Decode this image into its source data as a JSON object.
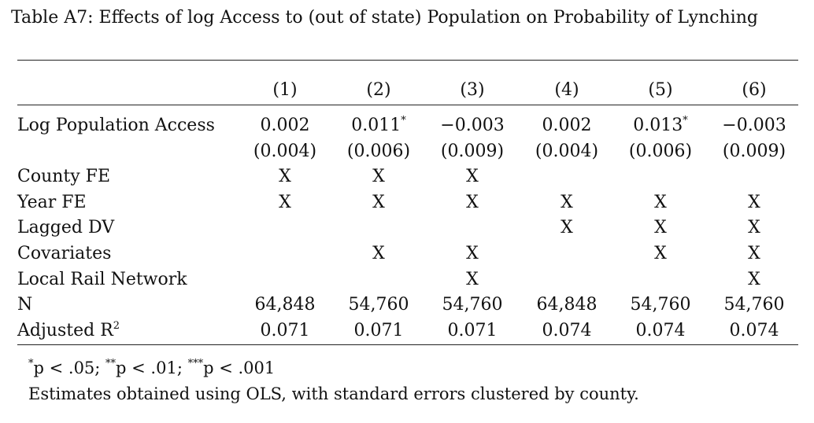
{
  "caption": "Table A7: Effects of log Access to (out of state) Population on Probability of Lynching",
  "table": {
    "columns": [
      "(1)",
      "(2)",
      "(3)",
      "(4)",
      "(5)",
      "(6)"
    ],
    "rows": [
      {
        "label": "Log Population Access",
        "cells": [
          {
            "v": "0.002",
            "star": ""
          },
          {
            "v": "0.011",
            "star": "*"
          },
          {
            "v": "−0.003",
            "star": ""
          },
          {
            "v": "0.002",
            "star": ""
          },
          {
            "v": "0.013",
            "star": "*"
          },
          {
            "v": "−0.003",
            "star": ""
          }
        ]
      },
      {
        "label": "",
        "cells": [
          {
            "v": "(0.004)",
            "star": ""
          },
          {
            "v": "(0.006)",
            "star": ""
          },
          {
            "v": "(0.009)",
            "star": ""
          },
          {
            "v": "(0.004)",
            "star": ""
          },
          {
            "v": "(0.006)",
            "star": ""
          },
          {
            "v": "(0.009)",
            "star": ""
          }
        ]
      },
      {
        "label": "County FE",
        "cells": [
          {
            "v": "X",
            "star": ""
          },
          {
            "v": "X",
            "star": ""
          },
          {
            "v": "X",
            "star": ""
          },
          {
            "v": "",
            "star": ""
          },
          {
            "v": "",
            "star": ""
          },
          {
            "v": "",
            "star": ""
          }
        ]
      },
      {
        "label": "Year FE",
        "cells": [
          {
            "v": "X",
            "star": ""
          },
          {
            "v": "X",
            "star": ""
          },
          {
            "v": "X",
            "star": ""
          },
          {
            "v": "X",
            "star": ""
          },
          {
            "v": "X",
            "star": ""
          },
          {
            "v": "X",
            "star": ""
          }
        ]
      },
      {
        "label": "Lagged DV",
        "cells": [
          {
            "v": "",
            "star": ""
          },
          {
            "v": "",
            "star": ""
          },
          {
            "v": "",
            "star": ""
          },
          {
            "v": "X",
            "star": ""
          },
          {
            "v": "X",
            "star": ""
          },
          {
            "v": "X",
            "star": ""
          }
        ]
      },
      {
        "label": "Covariates",
        "cells": [
          {
            "v": "",
            "star": ""
          },
          {
            "v": "X",
            "star": ""
          },
          {
            "v": "X",
            "star": ""
          },
          {
            "v": "",
            "star": ""
          },
          {
            "v": "X",
            "star": ""
          },
          {
            "v": "X",
            "star": ""
          }
        ]
      },
      {
        "label": "Local Rail Network",
        "cells": [
          {
            "v": "",
            "star": ""
          },
          {
            "v": "",
            "star": ""
          },
          {
            "v": "X",
            "star": ""
          },
          {
            "v": "",
            "star": ""
          },
          {
            "v": "",
            "star": ""
          },
          {
            "v": "X",
            "star": ""
          }
        ]
      },
      {
        "label": "N",
        "cells": [
          {
            "v": "64,848",
            "star": ""
          },
          {
            "v": "54,760",
            "star": ""
          },
          {
            "v": "54,760",
            "star": ""
          },
          {
            "v": "64,848",
            "star": ""
          },
          {
            "v": "54,760",
            "star": ""
          },
          {
            "v": "54,760",
            "star": ""
          }
        ]
      },
      {
        "label": "Adjusted R",
        "label_sup": "2",
        "cells": [
          {
            "v": "0.071",
            "star": ""
          },
          {
            "v": "0.071",
            "star": ""
          },
          {
            "v": "0.071",
            "star": ""
          },
          {
            "v": "0.074",
            "star": ""
          },
          {
            "v": "0.074",
            "star": ""
          },
          {
            "v": "0.074",
            "star": ""
          }
        ]
      }
    ]
  },
  "notes": {
    "sig": [
      {
        "sup": "*",
        "text": "p < .05; "
      },
      {
        "sup": "**",
        "text": "p < .01; "
      },
      {
        "sup": "***",
        "text": "p < .001"
      }
    ],
    "method": "Estimates obtained using OLS, with standard errors clustered by county."
  }
}
